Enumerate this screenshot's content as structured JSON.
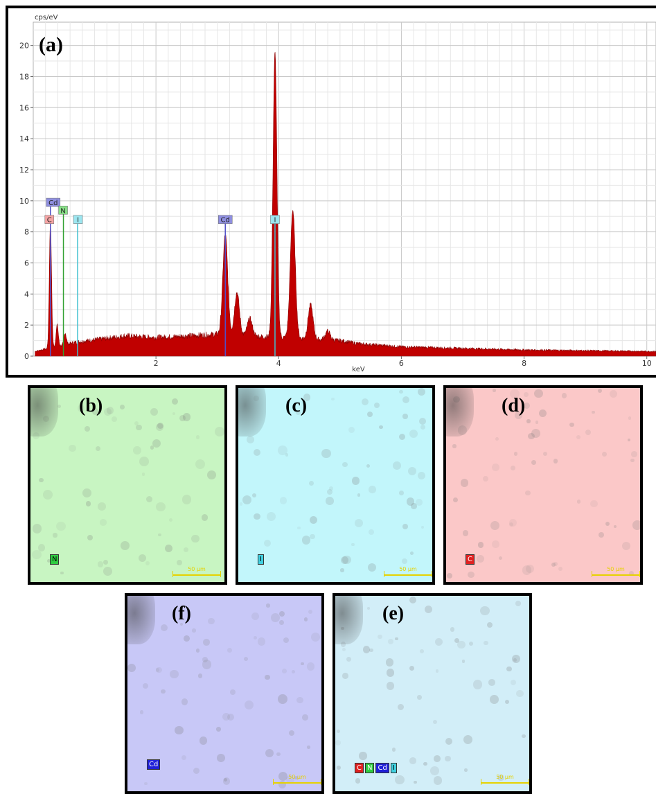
{
  "chart_data": {
    "type": "area",
    "ylabel": "cps/eV",
    "xlabel": "keV",
    "panel_label": "(a)",
    "xlim": [
      0.0,
      10.15
    ],
    "ylim": [
      0,
      21.5
    ],
    "x_ticks": [
      2,
      4,
      6,
      8,
      10
    ],
    "y_ticks": [
      0,
      2,
      4,
      6,
      8,
      10,
      12,
      14,
      16,
      18,
      20
    ],
    "grid": true,
    "fill_color": "#c00000",
    "peaks": [
      {
        "x": 0.28,
        "y": 8.6
      },
      {
        "x": 0.39,
        "y": 2.0
      },
      {
        "x": 0.52,
        "y": 1.5
      },
      {
        "x": 3.13,
        "y": 7.8
      },
      {
        "x": 3.32,
        "y": 4.1
      },
      {
        "x": 3.53,
        "y": 2.4
      },
      {
        "x": 3.94,
        "y": 19.5
      },
      {
        "x": 4.23,
        "y": 9.4
      },
      {
        "x": 4.52,
        "y": 3.3
      },
      {
        "x": 4.8,
        "y": 1.6
      }
    ],
    "background": [
      {
        "x": 0.02,
        "y": 0.3
      },
      {
        "x": 0.7,
        "y": 0.9
      },
      {
        "x": 1.5,
        "y": 1.3
      },
      {
        "x": 2.0,
        "y": 1.2
      },
      {
        "x": 2.5,
        "y": 1.3
      },
      {
        "x": 3.0,
        "y": 1.4
      },
      {
        "x": 5.0,
        "y": 1.0
      },
      {
        "x": 5.3,
        "y": 0.8
      },
      {
        "x": 6.0,
        "y": 0.6
      },
      {
        "x": 8.0,
        "y": 0.4
      },
      {
        "x": 10.15,
        "y": 0.3
      }
    ],
    "element_markers": [
      {
        "label": "C",
        "x": 0.28,
        "y": 8.8,
        "color": "#f4a4a4",
        "line_color": "#f4a4a4"
      },
      {
        "label": "Cd",
        "x": 0.28,
        "y": 9.9,
        "color": "#8f8fe0",
        "line_color": "#5050c8"
      },
      {
        "label": "N",
        "x": 0.39,
        "y": 9.4,
        "color": "#88e088",
        "line_color": "#30a030"
      },
      {
        "label": "I",
        "x": 0.52,
        "y": 8.8,
        "color": "#9ce6f0",
        "line_color": "#40c0d0"
      },
      {
        "label": "Cd",
        "x": 3.13,
        "y": 8.8,
        "color": "#8f8fe0",
        "line_color": "#5050c8"
      },
      {
        "label": "I",
        "x": 3.94,
        "y": 8.8,
        "color": "#9ce6f0",
        "line_color": "#40c0d0"
      }
    ]
  },
  "maps": [
    {
      "id": "b",
      "label": "(b)",
      "element": "N",
      "tint": "#c8f5c2",
      "tag_bg": "#2ecc40",
      "scale_text": "50 µm"
    },
    {
      "id": "c",
      "label": "(c)",
      "element": "I",
      "tint": "#c2f6fb",
      "tag_bg": "#3fd0e0",
      "scale_text": "50 µm"
    },
    {
      "id": "d",
      "label": "(d)",
      "element": "C",
      "tint": "#fbc8c8",
      "tag_bg": "#e02020",
      "scale_text": "50 µm"
    },
    {
      "id": "f",
      "label": "(f)",
      "element": "Cd",
      "tint": "#c8c8f7",
      "tag_bg": "#2020d8",
      "scale_text": "50 µm"
    },
    {
      "id": "e",
      "label": "(e)",
      "element": "",
      "tint": "#d2eef8",
      "tag_bg": "",
      "scale_text": "50 µm",
      "tags": [
        {
          "text": "C",
          "bg": "#e02020"
        },
        {
          "text": "N",
          "bg": "#2ecc40"
        },
        {
          "text": "Cd",
          "bg": "#2020d8"
        },
        {
          "text": "I",
          "bg": "#3fd0e0"
        }
      ]
    }
  ]
}
